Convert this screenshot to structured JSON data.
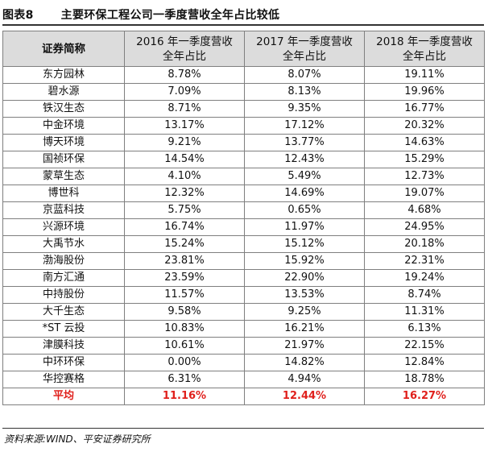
{
  "figure": {
    "label": "图表8",
    "title": "主要环保工程公司一季度营收全年占比较低"
  },
  "table": {
    "headers": [
      "证券简称",
      "2016 年一季度营收\n全年占比",
      "2017 年一季度营收\n全年占比",
      "2018 年一季度营收\n全年占比"
    ],
    "rows": [
      [
        "东方园林",
        "8.78%",
        "8.07%",
        "19.11%"
      ],
      [
        "碧水源",
        "7.09%",
        "8.13%",
        "19.96%"
      ],
      [
        "铁汉生态",
        "8.71%",
        "9.35%",
        "16.77%"
      ],
      [
        "中金环境",
        "13.17%",
        "17.12%",
        "20.32%"
      ],
      [
        "博天环境",
        "9.21%",
        "13.77%",
        "14.63%"
      ],
      [
        "国祯环保",
        "14.54%",
        "12.43%",
        "15.29%"
      ],
      [
        "蒙草生态",
        "4.10%",
        "5.49%",
        "12.73%"
      ],
      [
        "博世科",
        "12.32%",
        "14.69%",
        "19.07%"
      ],
      [
        "京蓝科技",
        "5.75%",
        "0.65%",
        "4.68%"
      ],
      [
        "兴源环境",
        "16.74%",
        "11.97%",
        "24.95%"
      ],
      [
        "大禹节水",
        "15.24%",
        "15.12%",
        "20.18%"
      ],
      [
        "渤海股份",
        "23.81%",
        "15.92%",
        "22.31%"
      ],
      [
        "南方汇通",
        "23.59%",
        "22.90%",
        "19.24%"
      ],
      [
        "中持股份",
        "11.57%",
        "13.53%",
        "8.74%"
      ],
      [
        "大千生态",
        "9.58%",
        "9.25%",
        "11.31%"
      ],
      [
        "*ST 云投",
        "10.83%",
        "16.21%",
        "6.13%"
      ],
      [
        "津膜科技",
        "10.61%",
        "21.97%",
        "22.15%"
      ],
      [
        "中环环保",
        "0.00%",
        "14.82%",
        "12.84%"
      ],
      [
        "华控赛格",
        "6.31%",
        "4.94%",
        "18.78%"
      ]
    ],
    "average": [
      "平均",
      "11.16%",
      "12.44%",
      "16.27%"
    ],
    "average_color": "#e0201c"
  },
  "source": "资料来源:WIND、平安证券研究所"
}
